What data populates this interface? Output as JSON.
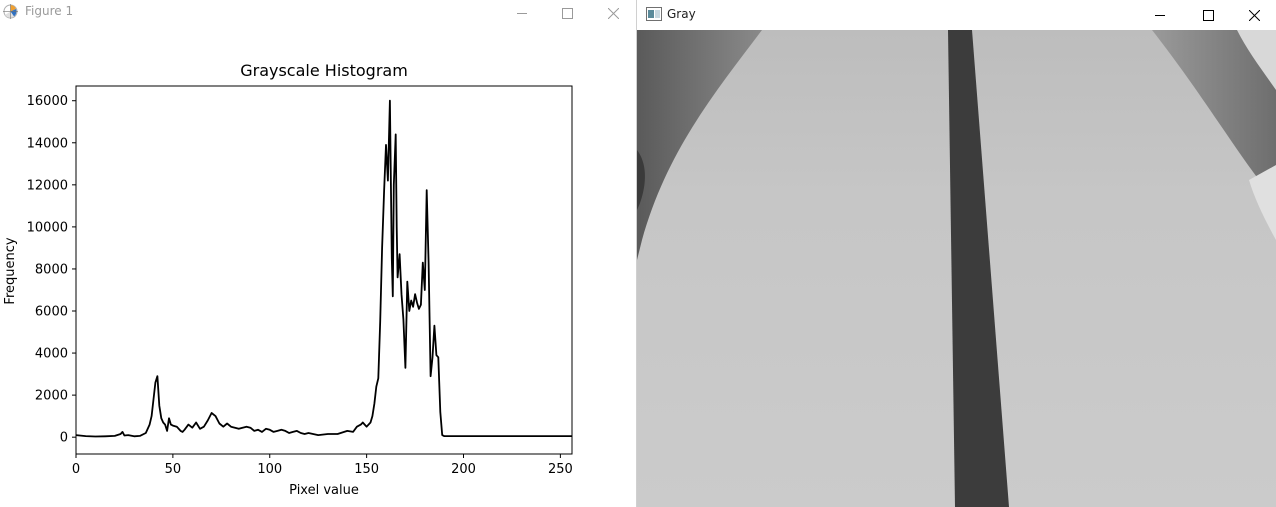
{
  "figure_window": {
    "title": "Figure 1",
    "controls": {
      "minimize": "minimize",
      "maximize": "maximize",
      "close": "close"
    }
  },
  "gray_window": {
    "title": "Gray",
    "controls": {
      "minimize": "minimize",
      "maximize": "maximize",
      "close": "close"
    }
  },
  "chart_data": {
    "type": "line",
    "title": "Grayscale Histogram",
    "xlabel": "Pixel value",
    "ylabel": "Frequency",
    "xlim": [
      0,
      256
    ],
    "ylim": [
      -800,
      16700
    ],
    "xticks": [
      0,
      50,
      100,
      150,
      200,
      250
    ],
    "yticks": [
      0,
      2000,
      4000,
      6000,
      8000,
      10000,
      12000,
      14000,
      16000
    ],
    "grid": false,
    "legend": "none",
    "line_color": "#000000",
    "series": [
      {
        "x": [
          0,
          5,
          10,
          15,
          20,
          23,
          24,
          25,
          27,
          30,
          33,
          36,
          38,
          39,
          40,
          41,
          42,
          43,
          44,
          45,
          46,
          47,
          48,
          49,
          50,
          52,
          54,
          55,
          56,
          58,
          60,
          62,
          64,
          66,
          68,
          70,
          72,
          74,
          76,
          78,
          80,
          82,
          84,
          86,
          88,
          90,
          92,
          94,
          96,
          98,
          100,
          102,
          104,
          106,
          108,
          110,
          112,
          114,
          116,
          118,
          120,
          125,
          130,
          135,
          140,
          143,
          145,
          147,
          148,
          149,
          150,
          152,
          153,
          154,
          155,
          156,
          157,
          158,
          159,
          160,
          161,
          162,
          163,
          163.5,
          164,
          165,
          165.5,
          166,
          167,
          168,
          169,
          170,
          171,
          172,
          173,
          174,
          175,
          176,
          177,
          178,
          179,
          180,
          181,
          182,
          183,
          184,
          185,
          186,
          187,
          188,
          189,
          190,
          191,
          192,
          193,
          194,
          196,
          200,
          210,
          220,
          230,
          240,
          250,
          256
        ],
        "y": [
          100,
          50,
          30,
          40,
          60,
          150,
          250,
          80,
          100,
          40,
          60,
          200,
          600,
          1000,
          1800,
          2600,
          2900,
          1500,
          900,
          700,
          600,
          300,
          900,
          600,
          550,
          500,
          300,
          250,
          350,
          600,
          450,
          700,
          400,
          500,
          800,
          1150,
          1000,
          650,
          500,
          650,
          500,
          450,
          400,
          450,
          500,
          450,
          300,
          350,
          250,
          400,
          350,
          250,
          300,
          350,
          300,
          200,
          250,
          300,
          200,
          150,
          200,
          100,
          150,
          150,
          300,
          250,
          500,
          600,
          700,
          600,
          500,
          700,
          1000,
          1600,
          2400,
          2800,
          5500,
          9000,
          11700,
          13900,
          12200,
          16000,
          8500,
          6700,
          12000,
          14400,
          10000,
          7600,
          8700,
          6800,
          5600,
          3300,
          7400,
          6000,
          6500,
          6200,
          6800,
          6400,
          6100,
          6300,
          8300,
          7000,
          11750,
          8300,
          2900,
          3800,
          5300,
          3900,
          3800,
          1200,
          100,
          50,
          50,
          50,
          50,
          50,
          50,
          50,
          50,
          50,
          50,
          50,
          50,
          50
        ]
      }
    ]
  }
}
